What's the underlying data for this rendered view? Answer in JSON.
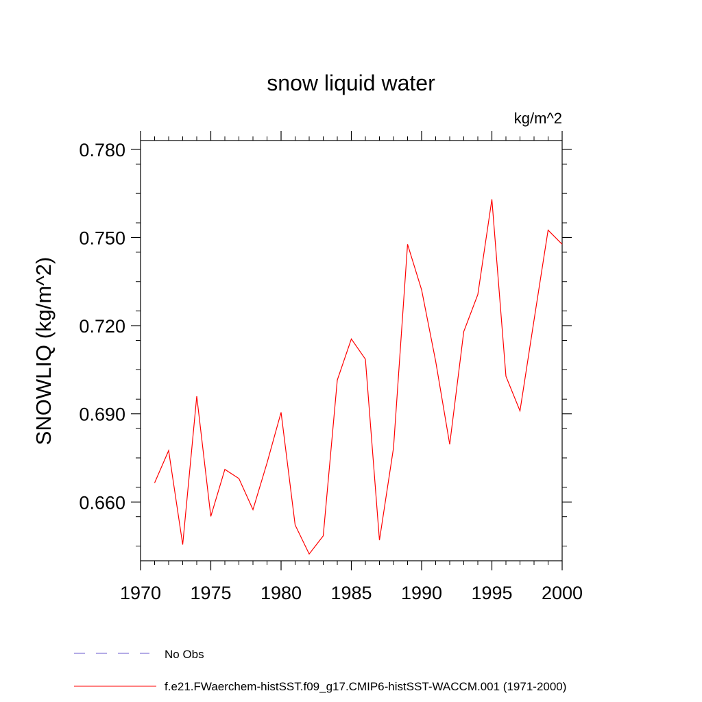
{
  "chart_data": {
    "type": "line",
    "title": "snow liquid water",
    "units_label": "kg/m^2",
    "ylabel": "SNOWLIQ  (kg/m^2)",
    "xlabel": "",
    "xlim": [
      1970,
      2000
    ],
    "ylim": [
      0.64,
      0.783
    ],
    "x_ticks": [
      1970,
      1975,
      1980,
      1985,
      1990,
      1995,
      2000
    ],
    "y_ticks": [
      "0.660",
      "0.690",
      "0.720",
      "0.750",
      "0.780"
    ],
    "grid": false,
    "series": [
      {
        "name": "No Obs",
        "color": "#6a5acd",
        "dash": "dashed",
        "x": [],
        "y": []
      },
      {
        "name": "f.e21.FWaerchem-histSST.f09_g17.CMIP6-histSST-WACCM.001 (1971-2000)",
        "color": "#ff0000",
        "dash": "solid",
        "x": [
          1971,
          1972,
          1973,
          1974,
          1975,
          1976,
          1977,
          1978,
          1979,
          1980,
          1981,
          1982,
          1983,
          1984,
          1985,
          1986,
          1987,
          1988,
          1989,
          1990,
          1991,
          1992,
          1993,
          1994,
          1995,
          1996,
          1997,
          1998,
          1999,
          2000
        ],
        "y": [
          0.6665,
          0.6775,
          0.6455,
          0.696,
          0.6551,
          0.6711,
          0.668,
          0.6574,
          0.6733,
          0.6905,
          0.6522,
          0.6423,
          0.6485,
          0.7015,
          0.7155,
          0.7086,
          0.647,
          0.6784,
          0.7477,
          0.7322,
          0.7079,
          0.6796,
          0.718,
          0.7306,
          0.763,
          0.7028,
          0.691,
          0.7219,
          0.7525,
          0.7477
        ]
      }
    ],
    "legend": "bottom-left"
  }
}
